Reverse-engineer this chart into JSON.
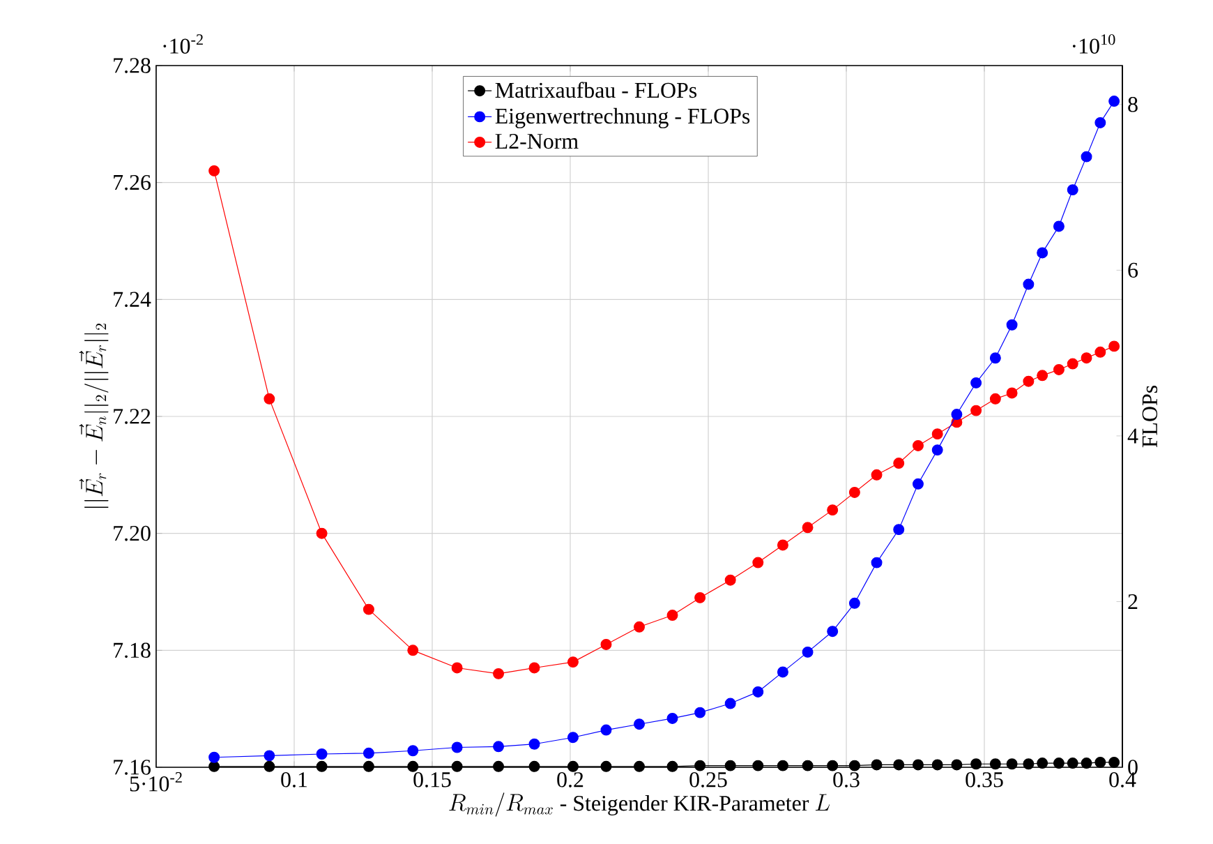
{
  "chart_data": {
    "type": "line",
    "xlabel": "R_{min}/R_{max}\\mbox{ - Steigender KIR-Parameter }L",
    "ylabel": "||\\vec{E}_r-\\vec{E}_n||_2/||\\vec{E}_r||_2",
    "y2label": "FLOPs",
    "annotations": [
      "·10$^{-2}$",
      "·10$^{10}$"
    ],
    "x": [
      0.071,
      0.091,
      0.11,
      0.127,
      0.143,
      0.159,
      0.174,
      0.187,
      0.201,
      0.213,
      0.225,
      0.237,
      0.247,
      0.258,
      0.268,
      0.277,
      0.286,
      0.295,
      0.303,
      0.311,
      0.319,
      0.326,
      0.333,
      0.34,
      0.347,
      0.354,
      0.36,
      0.366,
      0.371,
      0.377,
      0.382,
      0.387,
      0.392,
      0.397
    ],
    "series": [
      {
        "name": "Matrixaufbau - FLOPs",
        "color": "#000000",
        "axis": "y2",
        "values": [
          0.01,
          0.01,
          0.01,
          0.01,
          0.01,
          0.01,
          0.01,
          0.01,
          0.01,
          0.01,
          0.01,
          0.01,
          0.02,
          0.02,
          0.02,
          0.02,
          0.02,
          0.02,
          0.02,
          0.03,
          0.03,
          0.03,
          0.03,
          0.03,
          0.04,
          0.04,
          0.04,
          0.04,
          0.05,
          0.05,
          0.05,
          0.05,
          0.06,
          0.06
        ]
      },
      {
        "name": "Eigenwertrechnung - FLOPs",
        "color": "#0000ff",
        "axis": "y2",
        "values": [
          0.12,
          0.14,
          0.16,
          0.17,
          0.2,
          0.24,
          0.25,
          0.28,
          0.36,
          0.45,
          0.52,
          0.59,
          0.66,
          0.77,
          0.91,
          1.15,
          1.39,
          1.64,
          1.98,
          2.47,
          2.87,
          3.42,
          3.83,
          4.26,
          4.64,
          4.94,
          5.34,
          5.83,
          6.21,
          6.53,
          6.97,
          7.37,
          7.78,
          8.04
        ]
      },
      {
        "name": "L2-Norm",
        "color": "#ff0000",
        "axis": "y",
        "values": [
          7.262,
          7.223,
          7.2,
          7.187,
          7.18,
          7.177,
          7.176,
          7.177,
          7.178,
          7.181,
          7.184,
          7.186,
          7.189,
          7.192,
          7.195,
          7.198,
          7.201,
          7.204,
          7.207,
          7.21,
          7.212,
          7.215,
          7.217,
          7.219,
          7.221,
          7.223,
          7.224,
          7.226,
          7.227,
          7.228,
          7.229,
          7.23,
          7.231,
          7.232
        ]
      }
    ],
    "xlim": [
      0.05,
      0.4
    ],
    "xticks": [
      {
        "value": 0.05,
        "label": "5·10$^{-2}$"
      },
      0.1,
      0.15,
      0.2,
      0.25,
      0.3,
      0.35,
      0.4
    ],
    "ylim": [
      7.16,
      7.28
    ],
    "yticks": [
      7.16,
      7.18,
      {
        "value": 7.2,
        "label": "7.20"
      },
      7.22,
      7.24,
      7.26,
      7.28
    ],
    "y2lim": [
      0,
      8.47
    ],
    "y2ticks": [
      0,
      2,
      4,
      6,
      8
    ],
    "grid": true,
    "legend": "top",
    "marker": "circle",
    "line_style": "solid"
  }
}
